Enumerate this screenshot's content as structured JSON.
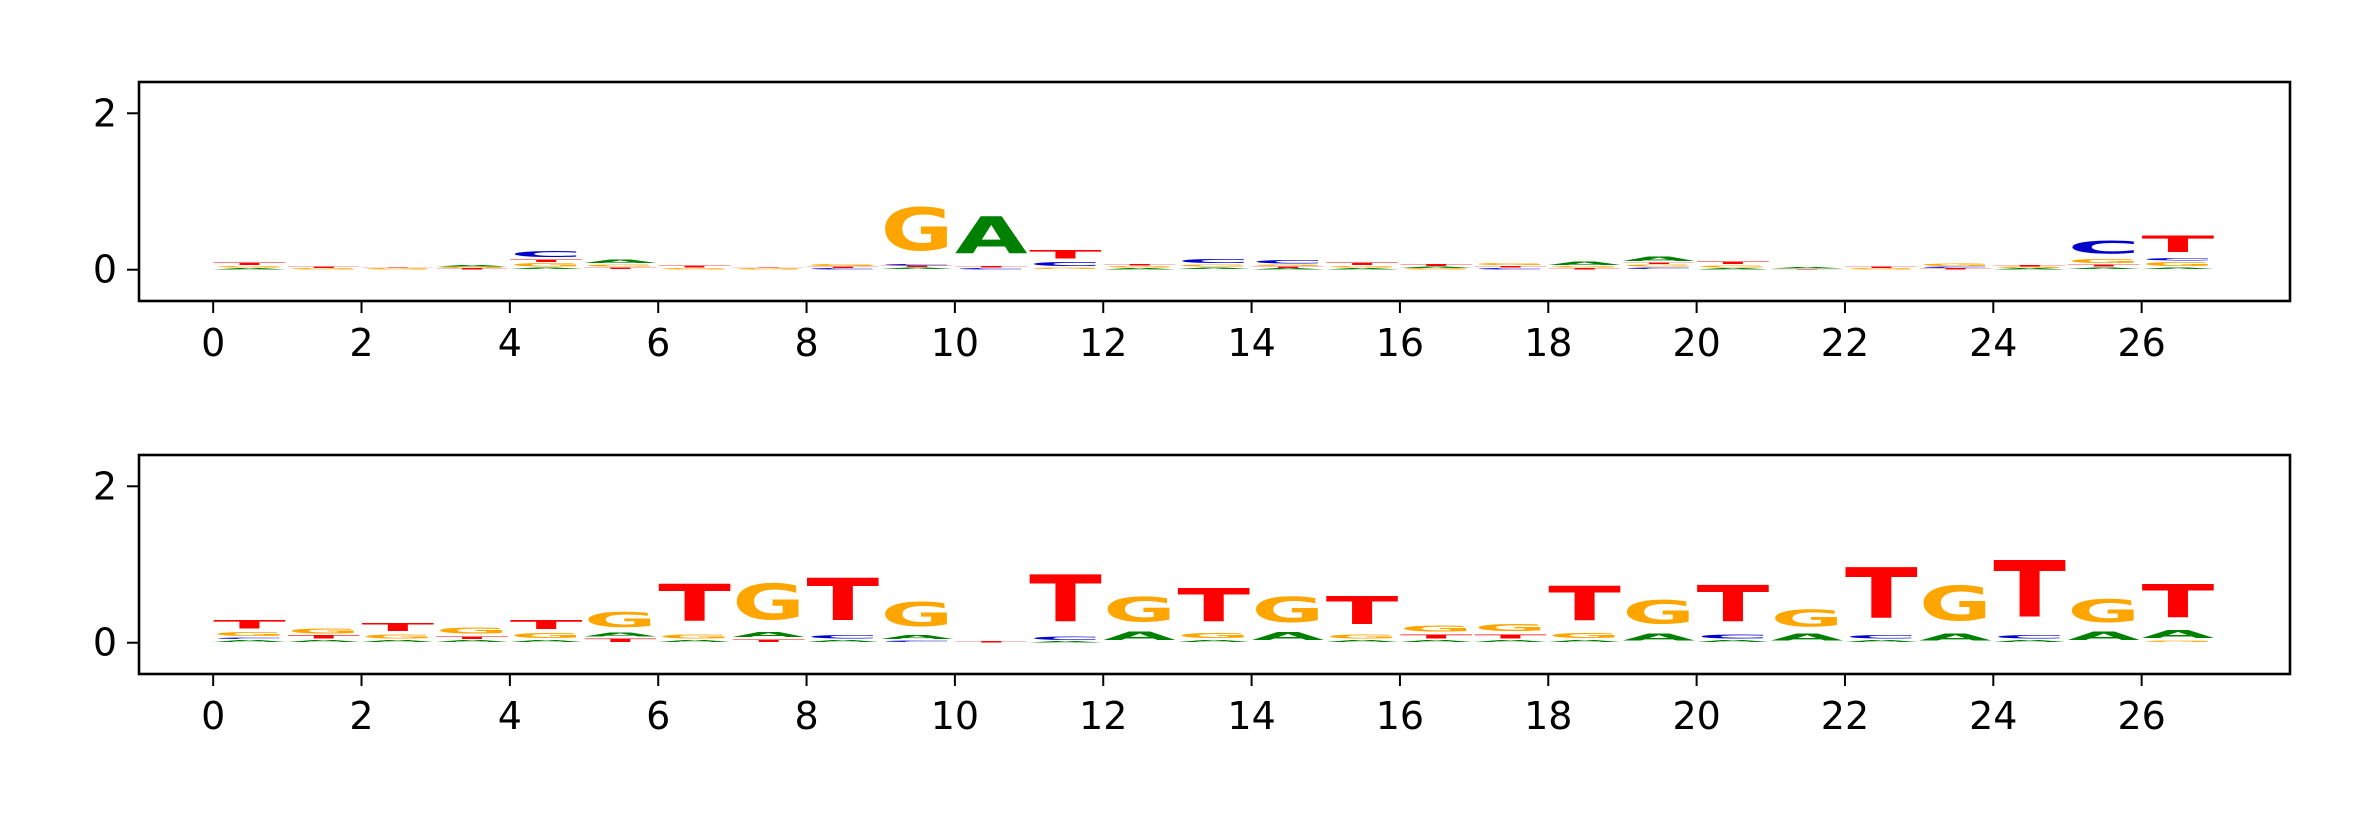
{
  "chart_data": [
    {
      "type": "sequence-logo",
      "title": "",
      "xlabel": "",
      "ylabel": "",
      "xlim": [
        -1,
        28
      ],
      "ylim": [
        -0.4,
        2.4
      ],
      "xticks": [
        0,
        2,
        4,
        6,
        8,
        10,
        12,
        14,
        16,
        18,
        20,
        22,
        24,
        26
      ],
      "xtick_labels": [
        "0",
        "2",
        "4",
        "6",
        "8",
        "10",
        "12",
        "14",
        "16",
        "18",
        "20",
        "22",
        "24",
        "26"
      ],
      "yticks": [
        0,
        2
      ],
      "ytick_labels": [
        "0",
        "2"
      ],
      "grid": false,
      "colors": {
        "A": "#008000",
        "C": "#0000cc",
        "G": "#ffa500",
        "T": "#ff0000"
      },
      "positions": [
        {
          "x": 0,
          "stack": [
            {
              "letter": "A",
              "height": 0.02
            },
            {
              "letter": "G",
              "height": 0.03
            },
            {
              "letter": "T",
              "height": 0.05
            }
          ]
        },
        {
          "x": 1,
          "stack": [
            {
              "letter": "G",
              "height": 0.02
            },
            {
              "letter": "T",
              "height": 0.02
            }
          ]
        },
        {
          "x": 2,
          "stack": [
            {
              "letter": "G",
              "height": 0.02
            },
            {
              "letter": "T",
              "height": 0.01
            }
          ]
        },
        {
          "x": 3,
          "stack": [
            {
              "letter": "T",
              "height": 0.02
            },
            {
              "letter": "G",
              "height": 0.02
            },
            {
              "letter": "A",
              "height": 0.02
            }
          ]
        },
        {
          "x": 4,
          "stack": [
            {
              "letter": "A",
              "height": 0.03
            },
            {
              "letter": "G",
              "height": 0.06
            },
            {
              "letter": "T",
              "height": 0.05
            },
            {
              "letter": "C",
              "height": 0.12
            }
          ]
        },
        {
          "x": 5,
          "stack": [
            {
              "letter": "T",
              "height": 0.03
            },
            {
              "letter": "G",
              "height": 0.04
            },
            {
              "letter": "A",
              "height": 0.07
            }
          ]
        },
        {
          "x": 6,
          "stack": [
            {
              "letter": "G",
              "height": 0.02
            },
            {
              "letter": "T",
              "height": 0.04
            }
          ]
        },
        {
          "x": 7,
          "stack": [
            {
              "letter": "G",
              "height": 0.02
            },
            {
              "letter": "T",
              "height": 0.01
            }
          ]
        },
        {
          "x": 8,
          "stack": [
            {
              "letter": "C",
              "height": 0.02
            },
            {
              "letter": "T",
              "height": 0.02
            },
            {
              "letter": "G",
              "height": 0.04
            }
          ]
        },
        {
          "x": 9,
          "stack": [
            {
              "letter": "A",
              "height": 0.03
            },
            {
              "letter": "T",
              "height": 0.02
            },
            {
              "letter": "C",
              "height": 0.02
            },
            {
              "letter": "G",
              "height": 0.88
            }
          ]
        },
        {
          "x": 10,
          "stack": [
            {
              "letter": "C",
              "height": 0.02
            },
            {
              "letter": "T",
              "height": 0.03
            },
            {
              "letter": "A",
              "height": 0.76
            }
          ]
        },
        {
          "x": 11,
          "stack": [
            {
              "letter": "G",
              "height": 0.03
            },
            {
              "letter": "C",
              "height": 0.08
            },
            {
              "letter": "T",
              "height": 0.17
            }
          ]
        },
        {
          "x": 12,
          "stack": [
            {
              "letter": "A",
              "height": 0.02
            },
            {
              "letter": "G",
              "height": 0.03
            },
            {
              "letter": "T",
              "height": 0.03
            }
          ]
        },
        {
          "x": 13,
          "stack": [
            {
              "letter": "A",
              "height": 0.03
            },
            {
              "letter": "G",
              "height": 0.04
            },
            {
              "letter": "C",
              "height": 0.08
            }
          ]
        },
        {
          "x": 14,
          "stack": [
            {
              "letter": "A",
              "height": 0.02
            },
            {
              "letter": "T",
              "height": 0.02
            },
            {
              "letter": "G",
              "height": 0.03
            },
            {
              "letter": "C",
              "height": 0.06
            }
          ]
        },
        {
          "x": 15,
          "stack": [
            {
              "letter": "A",
              "height": 0.02
            },
            {
              "letter": "G",
              "height": 0.03
            },
            {
              "letter": "T",
              "height": 0.05
            }
          ]
        },
        {
          "x": 16,
          "stack": [
            {
              "letter": "G",
              "height": 0.02
            },
            {
              "letter": "A",
              "height": 0.02
            },
            {
              "letter": "T",
              "height": 0.04
            }
          ]
        },
        {
          "x": 17,
          "stack": [
            {
              "letter": "C",
              "height": 0.02
            },
            {
              "letter": "T",
              "height": 0.03
            },
            {
              "letter": "G",
              "height": 0.04
            }
          ]
        },
        {
          "x": 18,
          "stack": [
            {
              "letter": "T",
              "height": 0.02
            },
            {
              "letter": "G",
              "height": 0.03
            },
            {
              "letter": "A",
              "height": 0.06
            }
          ]
        },
        {
          "x": 19,
          "stack": [
            {
              "letter": "C",
              "height": 0.03
            },
            {
              "letter": "G",
              "height": 0.04
            },
            {
              "letter": "T",
              "height": 0.02
            },
            {
              "letter": "A",
              "height": 0.09
            }
          ]
        },
        {
          "x": 20,
          "stack": [
            {
              "letter": "A",
              "height": 0.02
            },
            {
              "letter": "G",
              "height": 0.04
            },
            {
              "letter": "T",
              "height": 0.05
            }
          ]
        },
        {
          "x": 21,
          "stack": [
            {
              "letter": "T",
              "height": 0.01
            },
            {
              "letter": "A",
              "height": 0.02
            }
          ]
        },
        {
          "x": 22,
          "stack": [
            {
              "letter": "G",
              "height": 0.02
            },
            {
              "letter": "T",
              "height": 0.02
            }
          ]
        },
        {
          "x": 23,
          "stack": [
            {
              "letter": "T",
              "height": 0.02
            },
            {
              "letter": "C",
              "height": 0.02
            },
            {
              "letter": "G",
              "height": 0.05
            }
          ]
        },
        {
          "x": 24,
          "stack": [
            {
              "letter": "A",
              "height": 0.02
            },
            {
              "letter": "G",
              "height": 0.02
            },
            {
              "letter": "T",
              "height": 0.02
            }
          ]
        },
        {
          "x": 25,
          "stack": [
            {
              "letter": "A",
              "height": 0.03
            },
            {
              "letter": "T",
              "height": 0.04
            },
            {
              "letter": "G",
              "height": 0.08
            },
            {
              "letter": "C",
              "height": 0.27
            }
          ]
        },
        {
          "x": 26,
          "stack": [
            {
              "letter": "A",
              "height": 0.03
            },
            {
              "letter": "G",
              "height": 0.08
            },
            {
              "letter": "C",
              "height": 0.05
            },
            {
              "letter": "T",
              "height": 0.33
            }
          ]
        }
      ]
    },
    {
      "type": "sequence-logo",
      "title": "",
      "xlabel": "",
      "ylabel": "",
      "xlim": [
        -1,
        28
      ],
      "ylim": [
        -0.4,
        2.4
      ],
      "xticks": [
        0,
        2,
        4,
        6,
        8,
        10,
        12,
        14,
        16,
        18,
        20,
        22,
        24,
        26
      ],
      "xtick_labels": [
        "0",
        "2",
        "4",
        "6",
        "8",
        "10",
        "12",
        "14",
        "16",
        "18",
        "20",
        "22",
        "24",
        "26"
      ],
      "yticks": [
        0,
        2
      ],
      "ytick_labels": [
        "0",
        "2"
      ],
      "grid": false,
      "colors": {
        "A": "#008000",
        "C": "#0000cc",
        "G": "#ffa500",
        "T": "#ff0000"
      },
      "positions": [
        {
          "x": 0,
          "stack": [
            {
              "letter": "A",
              "height": 0.04
            },
            {
              "letter": "C",
              "height": 0.03
            },
            {
              "letter": "G",
              "height": 0.08
            },
            {
              "letter": "T",
              "height": 0.17
            }
          ]
        },
        {
          "x": 1,
          "stack": [
            {
              "letter": "A",
              "height": 0.04
            },
            {
              "letter": "T",
              "height": 0.06
            },
            {
              "letter": "G",
              "height": 0.1
            }
          ]
        },
        {
          "x": 2,
          "stack": [
            {
              "letter": "A",
              "height": 0.04
            },
            {
              "letter": "G",
              "height": 0.08
            },
            {
              "letter": "T",
              "height": 0.16
            }
          ]
        },
        {
          "x": 3,
          "stack": [
            {
              "letter": "A",
              "height": 0.04
            },
            {
              "letter": "T",
              "height": 0.05
            },
            {
              "letter": "G",
              "height": 0.12
            }
          ]
        },
        {
          "x": 4,
          "stack": [
            {
              "letter": "A",
              "height": 0.04
            },
            {
              "letter": "G",
              "height": 0.1
            },
            {
              "letter": "T",
              "height": 0.18
            }
          ]
        },
        {
          "x": 5,
          "stack": [
            {
              "letter": "T",
              "height": 0.06
            },
            {
              "letter": "A",
              "height": 0.08
            },
            {
              "letter": "G",
              "height": 0.3
            }
          ]
        },
        {
          "x": 6,
          "stack": [
            {
              "letter": "A",
              "height": 0.04
            },
            {
              "letter": "G",
              "height": 0.08
            },
            {
              "letter": "T",
              "height": 0.76
            }
          ]
        },
        {
          "x": 7,
          "stack": [
            {
              "letter": "T",
              "height": 0.05
            },
            {
              "letter": "A",
              "height": 0.1
            },
            {
              "letter": "G",
              "height": 0.73
            }
          ]
        },
        {
          "x": 8,
          "stack": [
            {
              "letter": "A",
              "height": 0.04
            },
            {
              "letter": "C",
              "height": 0.07
            },
            {
              "letter": "T",
              "height": 0.87
            }
          ]
        },
        {
          "x": 9,
          "stack": [
            {
              "letter": "C",
              "height": 0.03
            },
            {
              "letter": "A",
              "height": 0.08
            },
            {
              "letter": "G",
              "height": 0.49
            }
          ]
        },
        {
          "x": 10,
          "stack": [
            {
              "letter": "T",
              "height": 0.02
            }
          ]
        },
        {
          "x": 11,
          "stack": [
            {
              "letter": "A",
              "height": 0.02
            },
            {
              "letter": "C",
              "height": 0.06
            },
            {
              "letter": "T",
              "height": 0.96
            }
          ]
        },
        {
          "x": 12,
          "stack": [
            {
              "letter": "A",
              "height": 0.17
            },
            {
              "letter": "G",
              "height": 0.5
            }
          ]
        },
        {
          "x": 13,
          "stack": [
            {
              "letter": "A",
              "height": 0.04
            },
            {
              "letter": "G",
              "height": 0.1
            },
            {
              "letter": "T",
              "height": 0.68
            }
          ]
        },
        {
          "x": 14,
          "stack": [
            {
              "letter": "A",
              "height": 0.16
            },
            {
              "letter": "G",
              "height": 0.52
            }
          ]
        },
        {
          "x": 15,
          "stack": [
            {
              "letter": "A",
              "height": 0.04
            },
            {
              "letter": "G",
              "height": 0.08
            },
            {
              "letter": "T",
              "height": 0.57
            }
          ]
        },
        {
          "x": 16,
          "stack": [
            {
              "letter": "A",
              "height": 0.04
            },
            {
              "letter": "T",
              "height": 0.08
            },
            {
              "letter": "G",
              "height": 0.12
            }
          ]
        },
        {
          "x": 17,
          "stack": [
            {
              "letter": "A",
              "height": 0.04
            },
            {
              "letter": "T",
              "height": 0.08
            },
            {
              "letter": "G",
              "height": 0.14
            }
          ]
        },
        {
          "x": 18,
          "stack": [
            {
              "letter": "A",
              "height": 0.04
            },
            {
              "letter": "G",
              "height": 0.1
            },
            {
              "letter": "T",
              "height": 0.7
            }
          ]
        },
        {
          "x": 19,
          "stack": [
            {
              "letter": "A",
              "height": 0.15
            },
            {
              "letter": "G",
              "height": 0.48
            }
          ]
        },
        {
          "x": 20,
          "stack": [
            {
              "letter": "A",
              "height": 0.04
            },
            {
              "letter": "C",
              "height": 0.08
            },
            {
              "letter": "T",
              "height": 0.74
            }
          ]
        },
        {
          "x": 21,
          "stack": [
            {
              "letter": "A",
              "height": 0.14
            },
            {
              "letter": "G",
              "height": 0.34
            }
          ]
        },
        {
          "x": 22,
          "stack": [
            {
              "letter": "A",
              "height": 0.04
            },
            {
              "letter": "C",
              "height": 0.06
            },
            {
              "letter": "T",
              "height": 1.04
            }
          ]
        },
        {
          "x": 23,
          "stack": [
            {
              "letter": "A",
              "height": 0.14
            },
            {
              "letter": "G",
              "height": 0.7
            }
          ]
        },
        {
          "x": 24,
          "stack": [
            {
              "letter": "A",
              "height": 0.04
            },
            {
              "letter": "C",
              "height": 0.06
            },
            {
              "letter": "T",
              "height": 1.16
            }
          ]
        },
        {
          "x": 25,
          "stack": [
            {
              "letter": "A",
              "height": 0.17
            },
            {
              "letter": "G",
              "height": 0.46
            }
          ]
        },
        {
          "x": 26,
          "stack": [
            {
              "letter": "G",
              "height": 0.03
            },
            {
              "letter": "A",
              "height": 0.16
            },
            {
              "letter": "T",
              "height": 0.68
            }
          ]
        }
      ]
    }
  ]
}
